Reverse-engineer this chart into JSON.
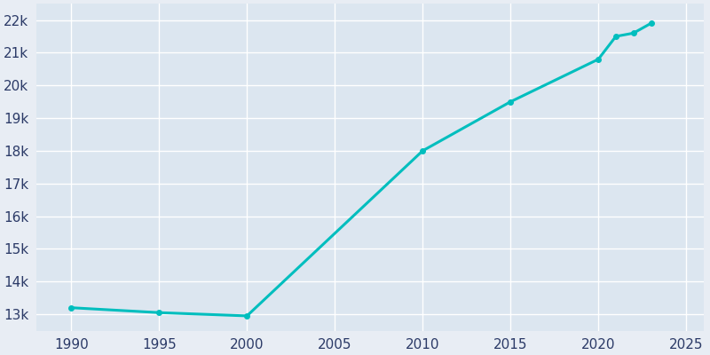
{
  "years": [
    1990,
    1995,
    2000,
    2010,
    2015,
    2020,
    2021,
    2022,
    2023
  ],
  "population": [
    13200,
    13050,
    12950,
    18000,
    19500,
    20800,
    21500,
    21600,
    21900
  ],
  "line_color": "#00BEBE",
  "bg_color": "#E8EDF4",
  "plot_bg_color": "#DCE6F0",
  "grid_color": "#FFFFFF",
  "tick_color": "#2B3A67",
  "ylim": [
    12500,
    22500
  ],
  "xlim": [
    1988,
    2026
  ],
  "yticks": [
    13000,
    14000,
    15000,
    16000,
    17000,
    18000,
    19000,
    20000,
    21000,
    22000
  ],
  "xticks": [
    1990,
    1995,
    2000,
    2005,
    2010,
    2015,
    2020,
    2025
  ],
  "linewidth": 2.2,
  "marker": "o",
  "markersize": 4
}
